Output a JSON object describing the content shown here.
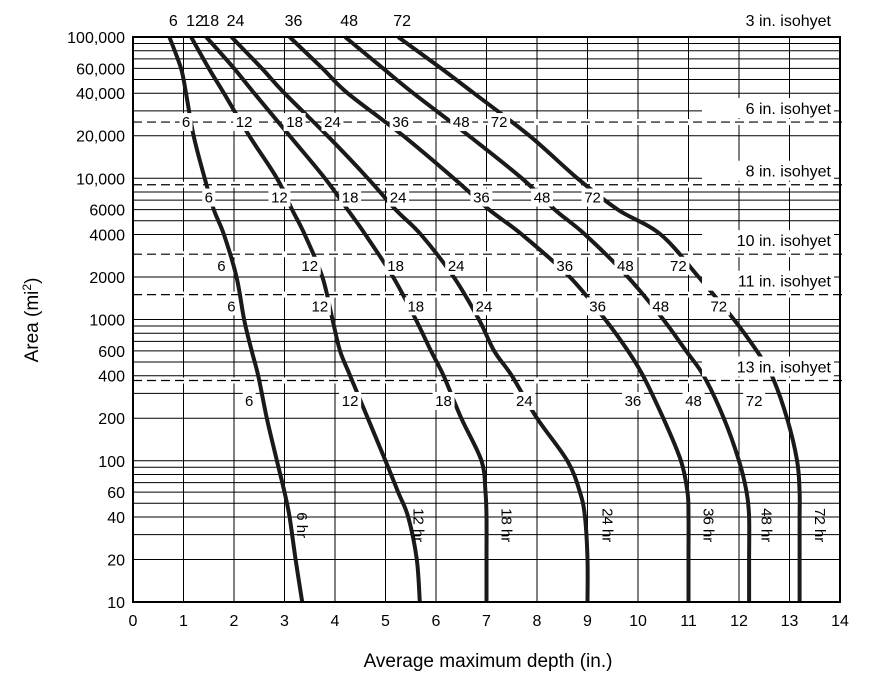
{
  "chart_data": {
    "type": "line",
    "xlabel": "Average maximum depth (in.)",
    "ylabel_main": "Area (mi",
    "ylabel_sup": "2",
    "ylabel_close": ")",
    "xlim": [
      0,
      14
    ],
    "ylim": [
      10,
      100000
    ],
    "yscale": "log",
    "grid": true,
    "x_ticks": [
      0,
      1,
      2,
      3,
      4,
      5,
      6,
      7,
      8,
      9,
      10,
      11,
      12,
      13,
      14
    ],
    "x_tick_labels": [
      "0",
      "1",
      "2",
      "3",
      "4",
      "5",
      "6",
      "7",
      "8",
      "9",
      "10",
      "11",
      "12",
      "13",
      "14"
    ],
    "y_ticks": [
      10,
      20,
      40,
      60,
      100,
      200,
      400,
      600,
      1000,
      2000,
      4000,
      6000,
      10000,
      20000,
      40000,
      60000,
      100000
    ],
    "y_tick_labels": [
      "10",
      "20",
      "40",
      "60",
      "100",
      "200",
      "400",
      "600",
      "1000",
      "2000",
      "4000",
      "6000",
      "10,000",
      "20,000",
      "40,000",
      "60,000",
      "100,000"
    ],
    "series": [
      {
        "name": "6 hr",
        "top_label": "6",
        "points": [
          [
            0.72,
            100000
          ],
          [
            0.95,
            60000
          ],
          [
            1.05,
            40000
          ],
          [
            1.2,
            20000
          ],
          [
            1.42,
            10000
          ],
          [
            1.6,
            6000
          ],
          [
            1.8,
            4000
          ],
          [
            2.05,
            2000
          ],
          [
            2.2,
            1000
          ],
          [
            2.35,
            600
          ],
          [
            2.48,
            400
          ],
          [
            2.65,
            200
          ],
          [
            2.85,
            100
          ],
          [
            3.0,
            60
          ],
          [
            3.1,
            40
          ],
          [
            3.22,
            20
          ],
          [
            3.35,
            10
          ]
        ]
      },
      {
        "name": "12 hr",
        "top_label": "12",
        "points": [
          [
            1.15,
            100000
          ],
          [
            1.5,
            60000
          ],
          [
            1.8,
            40000
          ],
          [
            2.3,
            20000
          ],
          [
            2.85,
            10000
          ],
          [
            3.15,
            6000
          ],
          [
            3.4,
            4000
          ],
          [
            3.75,
            2000
          ],
          [
            3.95,
            1000
          ],
          [
            4.1,
            600
          ],
          [
            4.3,
            400
          ],
          [
            4.65,
            200
          ],
          [
            5.0,
            100
          ],
          [
            5.25,
            60
          ],
          [
            5.45,
            40
          ],
          [
            5.62,
            20
          ],
          [
            5.68,
            10
          ]
        ]
      },
      {
        "name": "18 hr",
        "top_label": "18",
        "points": [
          [
            1.45,
            100000
          ],
          [
            2.0,
            60000
          ],
          [
            2.4,
            40000
          ],
          [
            3.1,
            20000
          ],
          [
            3.8,
            10000
          ],
          [
            4.25,
            6000
          ],
          [
            4.6,
            4000
          ],
          [
            5.15,
            2000
          ],
          [
            5.6,
            1000
          ],
          [
            5.9,
            600
          ],
          [
            6.15,
            400
          ],
          [
            6.5,
            200
          ],
          [
            6.9,
            100
          ],
          [
            6.98,
            60
          ],
          [
            7.0,
            40
          ],
          [
            7.0,
            20
          ],
          [
            7.0,
            10
          ]
        ]
      },
      {
        "name": "24 hr",
        "top_label": "24",
        "points": [
          [
            1.95,
            100000
          ],
          [
            2.55,
            60000
          ],
          [
            3.0,
            40000
          ],
          [
            3.85,
            20000
          ],
          [
            4.65,
            10000
          ],
          [
            5.2,
            6000
          ],
          [
            5.7,
            4000
          ],
          [
            6.35,
            2000
          ],
          [
            6.85,
            1000
          ],
          [
            7.15,
            600
          ],
          [
            7.5,
            400
          ],
          [
            8.0,
            200
          ],
          [
            8.6,
            100
          ],
          [
            8.85,
            60
          ],
          [
            8.95,
            40
          ],
          [
            9.0,
            20
          ],
          [
            9.0,
            10
          ]
        ]
      },
      {
        "name": "36 hr",
        "top_label": "36",
        "points": [
          [
            3.1,
            100000
          ],
          [
            3.75,
            60000
          ],
          [
            4.25,
            40000
          ],
          [
            5.35,
            20000
          ],
          [
            6.35,
            10000
          ],
          [
            7.05,
            6000
          ],
          [
            7.7,
            4000
          ],
          [
            8.65,
            2000
          ],
          [
            9.35,
            1000
          ],
          [
            9.8,
            600
          ],
          [
            10.1,
            400
          ],
          [
            10.5,
            200
          ],
          [
            10.85,
            100
          ],
          [
            10.98,
            60
          ],
          [
            11.0,
            40
          ],
          [
            11.0,
            20
          ],
          [
            11.0,
            10
          ]
        ]
      },
      {
        "name": "48 hr",
        "top_label": "48",
        "points": [
          [
            4.2,
            100000
          ],
          [
            4.95,
            60000
          ],
          [
            5.55,
            40000
          ],
          [
            6.65,
            20000
          ],
          [
            7.7,
            10000
          ],
          [
            8.35,
            6000
          ],
          [
            8.95,
            4000
          ],
          [
            9.8,
            2000
          ],
          [
            10.5,
            1000
          ],
          [
            10.95,
            600
          ],
          [
            11.3,
            400
          ],
          [
            11.7,
            200
          ],
          [
            12.0,
            100
          ],
          [
            12.15,
            60
          ],
          [
            12.2,
            40
          ],
          [
            12.2,
            20
          ],
          [
            12.2,
            10
          ]
        ]
      },
      {
        "name": "72 hr",
        "top_label": "72",
        "points": [
          [
            5.25,
            100000
          ],
          [
            6.1,
            60000
          ],
          [
            6.75,
            40000
          ],
          [
            7.85,
            20000
          ],
          [
            8.8,
            10000
          ],
          [
            9.6,
            6000
          ],
          [
            10.45,
            4000
          ],
          [
            11.2,
            2000
          ],
          [
            11.9,
            1000
          ],
          [
            12.35,
            600
          ],
          [
            12.65,
            400
          ],
          [
            12.95,
            200
          ],
          [
            13.15,
            100
          ],
          [
            13.2,
            60
          ],
          [
            13.2,
            40
          ],
          [
            13.2,
            20
          ],
          [
            13.2,
            10
          ]
        ]
      }
    ],
    "isohyets": [
      {
        "label": "3 in. isohyet",
        "area": 100000,
        "line": false
      },
      {
        "label": "6 in. isohyet",
        "area": 25000,
        "line": true
      },
      {
        "label": "8 in. isohyet",
        "area": 9000,
        "line": true
      },
      {
        "label": "10 in. isohyet",
        "area": 2900,
        "line": true
      },
      {
        "label": "11 in. isohyet",
        "area": 1500,
        "line": true
      },
      {
        "label": "13 in. isohyet",
        "area": 370,
        "line": true
      }
    ],
    "curve_labels": [
      {
        "text": "6",
        "x": 1.05,
        "y": 25000
      },
      {
        "text": "12",
        "x": 2.2,
        "y": 25000
      },
      {
        "text": "18",
        "x": 3.2,
        "y": 25000
      },
      {
        "text": "24",
        "x": 3.95,
        "y": 25000
      },
      {
        "text": "36",
        "x": 5.3,
        "y": 25000
      },
      {
        "text": "48",
        "x": 6.5,
        "y": 25000
      },
      {
        "text": "72",
        "x": 7.25,
        "y": 25000
      },
      {
        "text": "6",
        "x": 1.5,
        "y": 7300
      },
      {
        "text": "12",
        "x": 2.9,
        "y": 7300
      },
      {
        "text": "18",
        "x": 4.3,
        "y": 7300
      },
      {
        "text": "24",
        "x": 5.25,
        "y": 7300
      },
      {
        "text": "36",
        "x": 6.9,
        "y": 7300
      },
      {
        "text": "48",
        "x": 8.1,
        "y": 7300
      },
      {
        "text": "72",
        "x": 9.1,
        "y": 7300
      },
      {
        "text": "6",
        "x": 1.75,
        "y": 2400
      },
      {
        "text": "12",
        "x": 3.5,
        "y": 2400
      },
      {
        "text": "18",
        "x": 5.2,
        "y": 2400
      },
      {
        "text": "24",
        "x": 6.4,
        "y": 2400
      },
      {
        "text": "36",
        "x": 8.55,
        "y": 2400
      },
      {
        "text": "48",
        "x": 9.75,
        "y": 2400
      },
      {
        "text": "72",
        "x": 10.8,
        "y": 2400
      },
      {
        "text": "6",
        "x": 1.95,
        "y": 1240
      },
      {
        "text": "12",
        "x": 3.7,
        "y": 1240
      },
      {
        "text": "18",
        "x": 5.6,
        "y": 1240
      },
      {
        "text": "24",
        "x": 6.95,
        "y": 1240
      },
      {
        "text": "36",
        "x": 9.2,
        "y": 1240
      },
      {
        "text": "48",
        "x": 10.45,
        "y": 1240
      },
      {
        "text": "72",
        "x": 11.6,
        "y": 1240
      },
      {
        "text": "6",
        "x": 2.3,
        "y": 265
      },
      {
        "text": "12",
        "x": 4.3,
        "y": 265
      },
      {
        "text": "18",
        "x": 6.15,
        "y": 265
      },
      {
        "text": "24",
        "x": 7.75,
        "y": 265
      },
      {
        "text": "36",
        "x": 9.9,
        "y": 265
      },
      {
        "text": "48",
        "x": 11.1,
        "y": 265
      },
      {
        "text": "72",
        "x": 12.3,
        "y": 265
      }
    ],
    "duration_labels": [
      {
        "text": "6 hr",
        "x": 3.25,
        "y": 35
      },
      {
        "text": "12 hr",
        "x": 5.55,
        "y": 35
      },
      {
        "text": "18 hr",
        "x": 7.3,
        "y": 35
      },
      {
        "text": "24 hr",
        "x": 9.3,
        "y": 35
      },
      {
        "text": "36 hr",
        "x": 11.3,
        "y": 35
      },
      {
        "text": "48 hr",
        "x": 12.45,
        "y": 35
      },
      {
        "text": "72 hr",
        "x": 13.5,
        "y": 35
      }
    ]
  }
}
